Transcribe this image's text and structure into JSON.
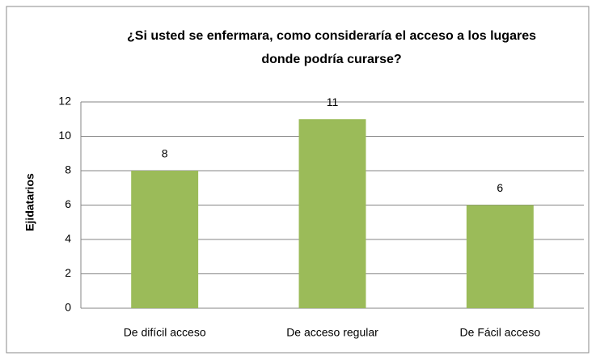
{
  "chart_data": {
    "type": "bar",
    "title": "¿Si usted se enfermara, como consideraría el acceso a los lugares donde podría curarse?",
    "y_label": "Ejidatarios",
    "categories": [
      "De difícil acceso",
      "De acceso regular",
      "De Fácil acceso"
    ],
    "values": [
      8,
      11,
      6
    ],
    "color": "#9bbb59",
    "ylim": [
      0,
      12
    ],
    "yticks": [
      0,
      2,
      4,
      6,
      8,
      10,
      12
    ],
    "grid": true
  }
}
